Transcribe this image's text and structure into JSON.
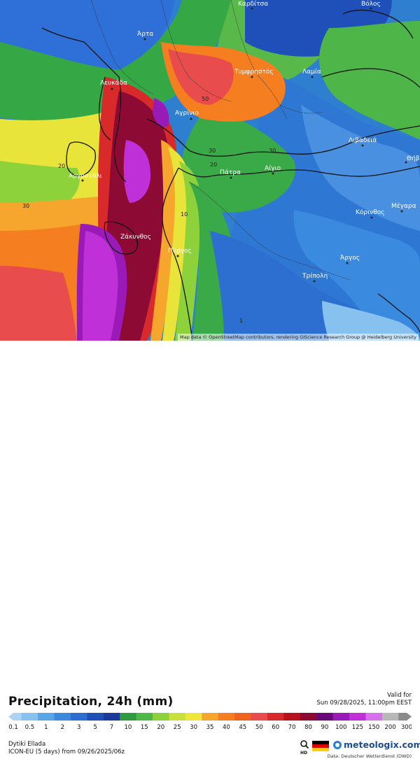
{
  "map": {
    "attribution": "Map data © OpenStreetMap contributors, rendering GIScience Research Group @ Heidelberg University",
    "cities": [
      {
        "name": "Καρδίτσα"
      },
      {
        "name": "Βόλος"
      },
      {
        "name": "Άρτα"
      },
      {
        "name": "Λευκάδα"
      },
      {
        "name": "Τυμφρηστός"
      },
      {
        "name": "Λαμία"
      },
      {
        "name": "Αγρίνιο"
      },
      {
        "name": "Λιβαδειά"
      },
      {
        "name": "Θήβ"
      },
      {
        "name": "Αργοστόλι"
      },
      {
        "name": "Πάτρα"
      },
      {
        "name": "Αίγιο"
      },
      {
        "name": "Κόρινθος"
      },
      {
        "name": "Μέγαρα"
      },
      {
        "name": "Ζάκυνθος"
      },
      {
        "name": "Πύργος"
      },
      {
        "name": "Άργος"
      },
      {
        "name": "Τρίπολη"
      }
    ],
    "values": [
      "30",
      "20",
      "30",
      "50",
      "20",
      "30",
      "10",
      "1"
    ]
  },
  "header": {
    "title": "Precipitation, 24h (mm)",
    "valid_label": "Valid for",
    "valid_time": "Sun 09/28/2025, 11:00pm EEST"
  },
  "legend": {
    "items": [
      {
        "label": "0.1",
        "color": "#aad3f4"
      },
      {
        "label": "0.5",
        "color": "#86c1ef"
      },
      {
        "label": "1",
        "color": "#5aa5e8"
      },
      {
        "label": "2",
        "color": "#3a8be0"
      },
      {
        "label": "3",
        "color": "#2c6fd0"
      },
      {
        "label": "5",
        "color": "#1f50b8"
      },
      {
        "label": "7",
        "color": "#1c3a9a"
      },
      {
        "label": "10",
        "color": "#2e9b40"
      },
      {
        "label": "15",
        "color": "#4db848"
      },
      {
        "label": "20",
        "color": "#8ed23b"
      },
      {
        "label": "25",
        "color": "#c7e13a"
      },
      {
        "label": "30",
        "color": "#f0e63a"
      },
      {
        "label": "35",
        "color": "#f6a62c"
      },
      {
        "label": "40",
        "color": "#f47e20"
      },
      {
        "label": "45",
        "color": "#f0621f"
      },
      {
        "label": "50",
        "color": "#e84c4c"
      },
      {
        "label": "60",
        "color": "#d82a2a"
      },
      {
        "label": "70",
        "color": "#b8121c"
      },
      {
        "label": "80",
        "color": "#8c0a34"
      },
      {
        "label": "90",
        "color": "#6a0a7a"
      },
      {
        "label": "100",
        "color": "#9a1ab8"
      },
      {
        "label": "125",
        "color": "#c030d8"
      },
      {
        "label": "150",
        "color": "#d870ee"
      },
      {
        "label": "200",
        "color": "#b8b8b8"
      },
      {
        "label": "300",
        "color": "#8a8a8a"
      }
    ]
  },
  "footer": {
    "region": "Dytiki Ellada",
    "model": "ICON-EU (5 days) from 09/26/2025/06z",
    "brand": "meteologix.com",
    "source": "Data: Deutscher Wetterdienst (DWD)"
  }
}
